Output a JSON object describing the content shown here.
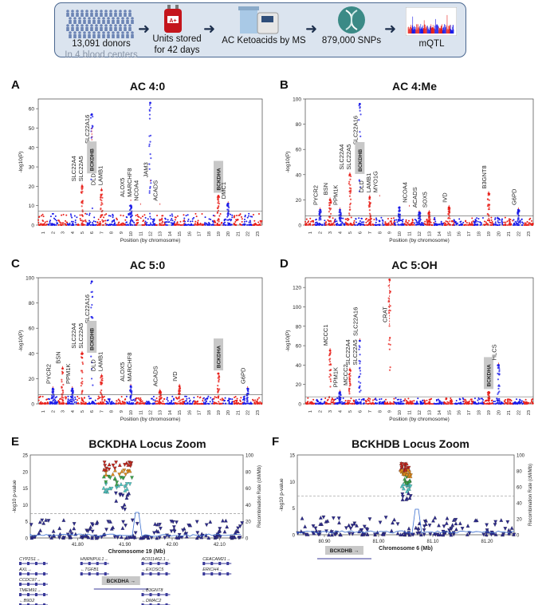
{
  "banner": {
    "steps": [
      {
        "line1": "13,091 donors",
        "line2": "In 4 blood centers"
      },
      {
        "line1": "Units stored",
        "line2": "for 42 days"
      },
      {
        "line1": "AC Ketoacids by MS"
      },
      {
        "line1": "879,000 SNPs"
      },
      {
        "line1": "mQTL"
      }
    ],
    "blood_bag_label": "A+",
    "icons": [
      "people-crowd-icon",
      "blood-bag-icon",
      "mass-spectrometer-icon",
      "dna-icon",
      "manhattan-thumbnail-icon"
    ]
  },
  "colors": {
    "odd_chr": "#e8201a",
    "even_chr": "#1a1ae8",
    "banner_bg": "#dbe4ef",
    "gene_box": "#c8c8c8"
  },
  "chart_data": [
    {
      "panel": "A",
      "type": "scatter",
      "title": "AC 4:0",
      "xlabel": "Position (by chromosome)",
      "ylabel": "-log10(P)",
      "ylim": [
        0,
        65
      ],
      "yticks": [
        0,
        10,
        20,
        30,
        40,
        50,
        60
      ],
      "chromosomes": [
        "1",
        "2",
        "3",
        "4",
        "5",
        "6",
        "7",
        "8",
        "9",
        "10",
        "11",
        "12",
        "13",
        "14",
        "15",
        "16",
        "17",
        "18",
        "19",
        "20",
        "21",
        "22",
        "23"
      ],
      "threshold": 7.3,
      "peaks": [
        {
          "chr": 5,
          "value": 20
        },
        {
          "chr": 6,
          "value": 57
        },
        {
          "chr": 7,
          "value": 18
        },
        {
          "chr": 10,
          "value": 10
        },
        {
          "chr": 12,
          "value": 63
        },
        {
          "chr": 19,
          "value": 15
        },
        {
          "chr": 20,
          "value": 11
        }
      ],
      "annotations": [
        {
          "chr": 5,
          "lines": [
            "SLC22A4",
            "SLC22A5"
          ],
          "value": 20
        },
        {
          "chr": 6,
          "lines": [
            "SLC22A16"
          ],
          "value": 50
        },
        {
          "chr": 6,
          "lines": [
            "BCKDHB"
          ],
          "boxed": true,
          "value": 25
        },
        {
          "chr": 7,
          "lines": [
            "DLD",
            "LAMB1"
          ],
          "value": 18
        },
        {
          "chr": 10,
          "lines": [
            "ALOX5",
            "MARCHF8"
          ],
          "value": 12
        },
        {
          "chr": 11,
          "lines": [
            "NCOA4"
          ],
          "value": 10
        },
        {
          "chr": 12,
          "lines": [
            "JAM3"
          ],
          "value": 22
        },
        {
          "chr": 13,
          "lines": [
            "ACADS"
          ],
          "value": 10
        },
        {
          "chr": 19,
          "lines": [
            "BCKDHA"
          ],
          "boxed": true,
          "value": 15
        },
        {
          "chr": 20,
          "lines": [
            "DMC1"
          ],
          "value": 11
        }
      ]
    },
    {
      "panel": "B",
      "type": "scatter",
      "title": "AC 4:Me",
      "xlabel": "Position (by chromosome)",
      "ylabel": "-log10(P)",
      "ylim": [
        0,
        100
      ],
      "yticks": [
        0,
        20,
        40,
        60,
        80,
        100
      ],
      "chromosomes": [
        "1",
        "2",
        "3",
        "4",
        "5",
        "6",
        "7",
        "8",
        "9",
        "10",
        "11",
        "12",
        "13",
        "14",
        "15",
        "16",
        "17",
        "18",
        "19",
        "20",
        "21",
        "22",
        "23"
      ],
      "threshold": 7.3,
      "peaks": [
        {
          "chr": 2,
          "value": 12
        },
        {
          "chr": 3,
          "value": 20
        },
        {
          "chr": 4,
          "value": 12
        },
        {
          "chr": 5,
          "value": 40
        },
        {
          "chr": 6,
          "value": 96
        },
        {
          "chr": 7,
          "value": 22
        },
        {
          "chr": 10,
          "value": 14
        },
        {
          "chr": 12,
          "value": 10
        },
        {
          "chr": 13,
          "value": 10
        },
        {
          "chr": 15,
          "value": 14
        },
        {
          "chr": 19,
          "value": 25
        },
        {
          "chr": 22,
          "value": 12
        }
      ],
      "annotations": [
        {
          "chr": 2,
          "lines": [
            "PYCR2"
          ],
          "value": 12
        },
        {
          "chr": 3,
          "lines": [
            "BSN"
          ],
          "value": 20
        },
        {
          "chr": 4,
          "lines": [
            "PPM1K"
          ],
          "value": 12
        },
        {
          "chr": 5,
          "lines": [
            "SLC22A4",
            "SLC22A5"
          ],
          "value": 40
        },
        {
          "chr": 6,
          "lines": [
            "SLC22A16"
          ],
          "value": 60
        },
        {
          "chr": 6,
          "lines": [
            "BCKDHB"
          ],
          "boxed": true,
          "value": 38
        },
        {
          "chr": 7,
          "lines": [
            "DLD",
            "LAMB1"
          ],
          "value": 22
        },
        {
          "chr": 8,
          "lines": [
            "MYO1G"
          ],
          "value": 22
        },
        {
          "chr": 11,
          "lines": [
            "NCOA4"
          ],
          "value": 14
        },
        {
          "chr": 12,
          "lines": [
            "ACADS"
          ],
          "value": 10
        },
        {
          "chr": 13,
          "lines": [
            "SOX5"
          ],
          "value": 10
        },
        {
          "chr": 15,
          "lines": [
            "IVD"
          ],
          "value": 14
        },
        {
          "chr": 19,
          "lines": [
            "B3GNT8"
          ],
          "value": 25
        },
        {
          "chr": 22,
          "lines": [
            "G6PD"
          ],
          "value": 12
        }
      ]
    },
    {
      "panel": "C",
      "type": "scatter",
      "title": "AC 5:0",
      "xlabel": "Position (by chromosome)",
      "ylabel": "-log10(P)",
      "ylim": [
        0,
        100
      ],
      "yticks": [
        0,
        20,
        40,
        60,
        80,
        100
      ],
      "chromosomes": [
        "1",
        "2",
        "3",
        "4",
        "5",
        "6",
        "7",
        "8",
        "9",
        "10",
        "11",
        "12",
        "13",
        "14",
        "15",
        "16",
        "17",
        "18",
        "19",
        "20",
        "21",
        "22",
        "23"
      ],
      "threshold": 7.3,
      "peaks": [
        {
          "chr": 2,
          "value": 12
        },
        {
          "chr": 3,
          "value": 28
        },
        {
          "chr": 4,
          "value": 12
        },
        {
          "chr": 5,
          "value": 40
        },
        {
          "chr": 6,
          "value": 97
        },
        {
          "chr": 7,
          "value": 22
        },
        {
          "chr": 10,
          "value": 14
        },
        {
          "chr": 13,
          "value": 10
        },
        {
          "chr": 15,
          "value": 14
        },
        {
          "chr": 19,
          "value": 24
        },
        {
          "chr": 22,
          "value": 12
        }
      ],
      "annotations": [
        {
          "chr": 2,
          "lines": [
            "PYCR2"
          ],
          "value": 12
        },
        {
          "chr": 3,
          "lines": [
            "BSN"
          ],
          "value": 28
        },
        {
          "chr": 4,
          "lines": [
            "PPM1K"
          ],
          "value": 12
        },
        {
          "chr": 5,
          "lines": [
            "SLC22A4",
            "SLC22A5"
          ],
          "value": 40
        },
        {
          "chr": 6,
          "lines": [
            "SLC22A16"
          ],
          "value": 60
        },
        {
          "chr": 6,
          "lines": [
            "BCKDHB"
          ],
          "boxed": true,
          "value": 38
        },
        {
          "chr": 7,
          "lines": [
            "DLD",
            "LAMB1"
          ],
          "value": 22
        },
        {
          "chr": 10,
          "lines": [
            "ALOX5",
            "MARCHF8"
          ],
          "value": 14
        },
        {
          "chr": 13,
          "lines": [
            "ACADS"
          ],
          "value": 10
        },
        {
          "chr": 15,
          "lines": [
            "IVD"
          ],
          "value": 14
        },
        {
          "chr": 19,
          "lines": [
            "BCKDHA"
          ],
          "boxed": true,
          "value": 24
        },
        {
          "chr": 22,
          "lines": [
            "G6PD"
          ],
          "value": 12
        }
      ]
    },
    {
      "panel": "D",
      "type": "scatter",
      "title": "AC 5:OH",
      "xlabel": "Position (by chromosome)",
      "ylabel": "-log10(P)",
      "ylim": [
        0,
        130
      ],
      "yticks": [
        0,
        20,
        40,
        60,
        80,
        100,
        120
      ],
      "chromosomes": [
        "1",
        "2",
        "3",
        "4",
        "5",
        "6",
        "7",
        "8",
        "9",
        "10",
        "11",
        "12",
        "13",
        "14",
        "15",
        "16",
        "17",
        "18",
        "19",
        "20",
        "21",
        "22",
        "23"
      ],
      "threshold": 7.3,
      "peaks": [
        {
          "chr": 3,
          "value": 55
        },
        {
          "chr": 4,
          "value": 12
        },
        {
          "chr": 5,
          "value": 35
        },
        {
          "chr": 6,
          "value": 65
        },
        {
          "chr": 9,
          "value": 128
        },
        {
          "chr": 19,
          "value": 12
        },
        {
          "chr": 20,
          "value": 40
        }
      ],
      "annotations": [
        {
          "chr": 3,
          "lines": [
            "MCCC1"
          ],
          "value": 55
        },
        {
          "chr": 4,
          "lines": [
            "PPM1K"
          ],
          "value": 12
        },
        {
          "chr": 5,
          "lines": [
            "MCCC2"
          ],
          "value": 14
        },
        {
          "chr": 5,
          "lines": [
            "SLC22A4",
            "SLC22A5"
          ],
          "value": 35
        },
        {
          "chr": 6,
          "lines": [
            "SLC22A16"
          ],
          "value": 65
        },
        {
          "chr": 9,
          "lines": [
            "CRAT"
          ],
          "value": 128
        },
        {
          "chr": 19,
          "lines": [
            "BCKDHA"
          ],
          "boxed": true,
          "value": 12
        },
        {
          "chr": 20,
          "lines": [
            "HLCS"
          ],
          "value": 40
        }
      ]
    },
    {
      "panel": "E",
      "type": "scatter",
      "title": "BCKDHA Locus Zoom",
      "xlabel": "Chromosome 19 (Mb)",
      "ylabel": "-log10 p-value",
      "y2label": "Recombination Rate (cM/Mb)",
      "ylim": [
        0,
        25
      ],
      "yticks": [
        0,
        5,
        10,
        15,
        20,
        25
      ],
      "y2ticks": [
        0,
        20,
        40,
        60,
        80,
        100
      ],
      "xlim": [
        41.7,
        42.15
      ],
      "xticks": [
        "41.80",
        "41.90",
        "42.00",
        "42.10"
      ],
      "threshold": 7.3,
      "lead_cluster": {
        "x_range": [
          41.855,
          41.915
        ],
        "value": 23
      },
      "genes": [
        {
          "name": "CYP2S1→",
          "row": 0
        },
        {
          "name": "HNRNPUL1→",
          "row": 0
        },
        {
          "name": "AC011462.1→",
          "row": 0
        },
        {
          "name": "CEACAM21→",
          "row": 0
        },
        {
          "name": "AXL→",
          "row": 1
        },
        {
          "name": "←TGFB1",
          "row": 1
        },
        {
          "name": "←EXOSC5",
          "row": 1
        },
        {
          "name": "ERICH4→",
          "row": 1
        },
        {
          "name": "CCDC97→",
          "row": 2
        },
        {
          "name": "BCKDHA →",
          "row": 2,
          "highlight": true
        },
        {
          "name": "TMEM91→",
          "row": 3
        },
        {
          "name": "←B3GNT8",
          "row": 3
        },
        {
          "name": "←B9D2",
          "row": 4
        },
        {
          "name": "←DMAC2",
          "row": 4
        }
      ]
    },
    {
      "panel": "F",
      "type": "scatter",
      "title": "BCKHDB Locus Zoom",
      "xlabel": "Chromosome 6 (Mb)",
      "ylabel": "-log10 p-value",
      "y2label": "Recombination Rate (cM/Mb)",
      "ylim": [
        0,
        15
      ],
      "yticks": [
        0,
        5,
        10,
        15
      ],
      "y2ticks": [
        0,
        20,
        40,
        60,
        80,
        100
      ],
      "xlim": [
        80.85,
        81.25
      ],
      "xticks": [
        "80.90",
        "81.00",
        "81.10",
        "81.20"
      ],
      "threshold": 7.3,
      "lead_cluster": {
        "x_range": [
          81.04,
          81.06
        ],
        "value": 13.5
      },
      "genes": [
        {
          "name": "BCKDHB →",
          "row": 0,
          "highlight": true
        }
      ]
    }
  ]
}
